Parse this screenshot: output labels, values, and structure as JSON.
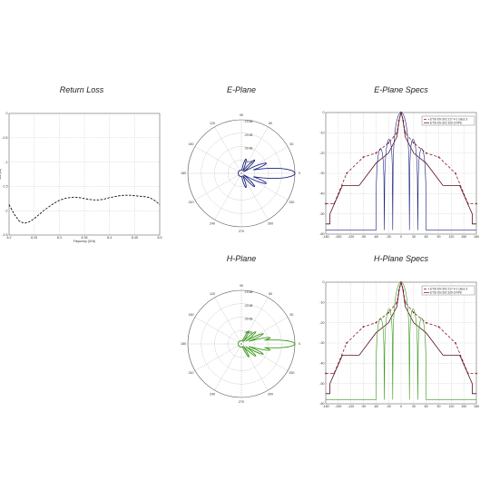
{
  "titles": {
    "return_loss": "Return Loss",
    "e_plane": "E-Plane",
    "e_specs": "E-Plane Specs",
    "h_plane": "H-Plane",
    "h_specs": "H-Plane Specs"
  },
  "chart_data": [
    {
      "id": "return_loss",
      "type": "line",
      "title": "Return Loss",
      "xlabel": "Frequency (GHz)",
      "ylabel": "S11 (dB)",
      "xlim": [
        8.2,
        8.5
      ],
      "ylim": [
        -2.6,
        0
      ],
      "xticks": [
        "8.2",
        "8.25",
        "8.3",
        "8.35",
        "8.4",
        "8.45",
        "8.5"
      ],
      "yticks": [
        "0",
        "-0.5",
        "-1",
        "-1.5",
        "-2",
        "-2.5"
      ],
      "grid": true,
      "series": [
        {
          "line_style": "dashed",
          "color": "#111111",
          "x": [
            8.2,
            8.21,
            8.22,
            8.23,
            8.24,
            8.25,
            8.26,
            8.27,
            8.28,
            8.29,
            8.3,
            8.31,
            8.32,
            8.33,
            8.34,
            8.35,
            8.36,
            8.37,
            8.38,
            8.39,
            8.4,
            8.41,
            8.42,
            8.43,
            8.44,
            8.45,
            8.46,
            8.47,
            8.48,
            8.49,
            8.5
          ],
          "y": [
            -1.95,
            -2.15,
            -2.3,
            -2.35,
            -2.32,
            -2.25,
            -2.16,
            -2.07,
            -1.99,
            -1.92,
            -1.86,
            -1.82,
            -1.8,
            -1.79,
            -1.8,
            -1.82,
            -1.84,
            -1.85,
            -1.85,
            -1.83,
            -1.8,
            -1.78,
            -1.76,
            -1.75,
            -1.75,
            -1.76,
            -1.77,
            -1.78,
            -1.8,
            -1.86,
            -1.95
          ]
        }
      ]
    },
    {
      "id": "e_plane",
      "type": "polar",
      "title": "E-Plane",
      "color": "#1a237e",
      "r_labels": [
        "-40 dB",
        "-30 dB",
        "-20 dB",
        "-10 dB"
      ],
      "angle_labels": [
        "0",
        "30",
        "60",
        "90",
        "120",
        "150",
        "180",
        "210",
        "240",
        "270",
        "300",
        "330"
      ],
      "lobes": [
        {
          "angle": 0,
          "r": 1.0,
          "w": 9
        },
        {
          "angle": 22,
          "r": 0.5,
          "w": 5
        },
        {
          "angle": -22,
          "r": 0.5,
          "w": 5
        },
        {
          "angle": 45,
          "r": 0.35,
          "w": 5
        },
        {
          "angle": -45,
          "r": 0.35,
          "w": 5
        },
        {
          "angle": 72,
          "r": 0.28,
          "w": 6
        },
        {
          "angle": -72,
          "r": 0.28,
          "w": 6
        }
      ]
    },
    {
      "id": "e_specs",
      "type": "line",
      "title": "E-Plane Specs",
      "xlim": [
        -180,
        180
      ],
      "ylim": [
        -60,
        0
      ],
      "xticks": [
        "-180",
        "-150",
        "-120",
        "-90",
        "-60",
        "-30",
        "0",
        "30",
        "60",
        "90",
        "120",
        "150",
        "180"
      ],
      "yticks": [
        "0",
        "-10",
        "-20",
        "-30",
        "-40",
        "-50",
        "-60"
      ],
      "grid": true,
      "legend": [
        "ETSI EN 302 217 4-1 class 3",
        "ETSI EN 302 326-3 RPE"
      ],
      "legend_position": "top-right",
      "series": [
        {
          "color": "#8b1a2a",
          "dash": "3,2",
          "markers": true,
          "x": [
            -180,
            -160,
            -130,
            -90,
            -60,
            -30,
            -10,
            -5,
            0,
            5,
            10,
            30,
            60,
            90,
            130,
            160,
            180
          ],
          "y": [
            -45,
            -45,
            -30,
            -22,
            -20,
            -15,
            -10,
            -4,
            0,
            -4,
            -10,
            -15,
            -20,
            -22,
            -30,
            -45,
            -45
          ]
        },
        {
          "color": "#5a1020",
          "dash": "",
          "markers": false,
          "x": [
            -180,
            -170,
            -170,
            -140,
            -100,
            -60,
            -30,
            -10,
            -4,
            0,
            4,
            10,
            30,
            60,
            100,
            140,
            170,
            170,
            180
          ],
          "y": [
            -55,
            -55,
            -50,
            -36,
            -36,
            -25,
            -20,
            -12,
            -3,
            0,
            -3,
            -12,
            -20,
            -25,
            -36,
            -36,
            -50,
            -55,
            -55
          ]
        }
      ],
      "pattern_color": "#1a237e"
    },
    {
      "id": "h_plane",
      "type": "polar",
      "title": "H-Plane",
      "color": "#3a9a1a",
      "r_labels": [
        "-40 dB",
        "-30 dB",
        "-20 dB",
        "-10 dB"
      ],
      "angle_labels": [
        "0",
        "30",
        "60",
        "90",
        "120",
        "150",
        "180",
        "210",
        "240",
        "270",
        "300",
        "330"
      ],
      "lobes": [
        {
          "angle": 0,
          "r": 1.0,
          "w": 7
        },
        {
          "angle": 12,
          "r": 0.55,
          "w": 4
        },
        {
          "angle": -12,
          "r": 0.55,
          "w": 4
        },
        {
          "angle": 25,
          "r": 0.45,
          "w": 4
        },
        {
          "angle": -25,
          "r": 0.45,
          "w": 4
        },
        {
          "angle": 40,
          "r": 0.35,
          "w": 5
        },
        {
          "angle": -40,
          "r": 0.35,
          "w": 5
        },
        {
          "angle": 60,
          "r": 0.28,
          "w": 5
        },
        {
          "angle": -60,
          "r": 0.28,
          "w": 5
        }
      ]
    },
    {
      "id": "h_specs",
      "type": "line",
      "title": "H-Plane Specs",
      "xlim": [
        -180,
        180
      ],
      "ylim": [
        -60,
        0
      ],
      "xticks": [
        "-180",
        "-150",
        "-120",
        "-90",
        "-60",
        "-30",
        "0",
        "30",
        "60",
        "90",
        "120",
        "150",
        "180"
      ],
      "yticks": [
        "0",
        "-10",
        "-20",
        "-30",
        "-40",
        "-50",
        "-60"
      ],
      "grid": true,
      "legend": [
        "ETSI EN 302 217 4-1 class 3",
        "ETSI EN 302 326-3 RPE"
      ],
      "legend_position": "top-right",
      "series": [
        {
          "color": "#8b1a2a",
          "dash": "3,2",
          "markers": true,
          "x": [
            -180,
            -160,
            -130,
            -90,
            -60,
            -30,
            -10,
            -5,
            0,
            5,
            10,
            30,
            60,
            90,
            130,
            160,
            180
          ],
          "y": [
            -45,
            -45,
            -30,
            -22,
            -20,
            -15,
            -10,
            -4,
            0,
            -4,
            -10,
            -15,
            -20,
            -22,
            -30,
            -45,
            -45
          ]
        },
        {
          "color": "#5a1020",
          "dash": "",
          "markers": false,
          "x": [
            -180,
            -170,
            -170,
            -140,
            -100,
            -60,
            -30,
            -10,
            -4,
            0,
            4,
            10,
            30,
            60,
            100,
            140,
            170,
            170,
            180
          ],
          "y": [
            -55,
            -55,
            -50,
            -36,
            -36,
            -25,
            -20,
            -12,
            -3,
            0,
            -3,
            -12,
            -20,
            -25,
            -36,
            -36,
            -50,
            -55,
            -55
          ]
        }
      ],
      "pattern_color": "#3a9a1a"
    }
  ]
}
